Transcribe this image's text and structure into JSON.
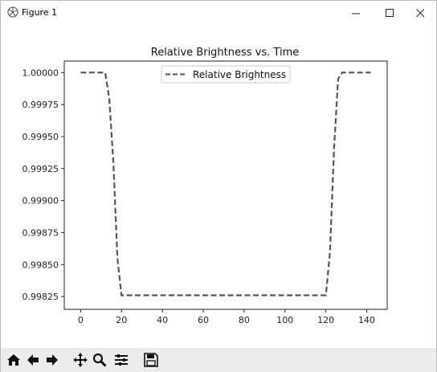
{
  "window": {
    "title": "Figure 1",
    "controls": [
      "minimize-icon",
      "maximize-icon",
      "close-icon"
    ]
  },
  "toolbar": {
    "buttons": [
      "home-icon",
      "back-icon",
      "forward-icon",
      "pan-icon",
      "zoom-icon",
      "configure-subplots-icon",
      "save-icon"
    ]
  },
  "chart_data": {
    "type": "line",
    "title": "Relative Brightness vs. Time",
    "xlabel": "",
    "ylabel": "",
    "xlim": [
      -8,
      150
    ],
    "ylim": [
      0.99815,
      1.00009
    ],
    "xticks": [
      "0",
      "20",
      "40",
      "60",
      "80",
      "100",
      "120",
      "140"
    ],
    "yticks": [
      "1.00000",
      "0.99975",
      "0.99950",
      "0.99925",
      "0.99900",
      "0.99875",
      "0.99850",
      "0.99825"
    ],
    "legend_position": "top-center",
    "grid": false,
    "series": [
      {
        "name": "Relative Brightness",
        "style": "dashed",
        "color": "#555555",
        "x": [
          0,
          12,
          14,
          16,
          18,
          20,
          60,
          100,
          120,
          122,
          124,
          126,
          128,
          142
        ],
        "y": [
          1.0,
          1.0,
          0.9998,
          0.9993,
          0.99855,
          0.99826,
          0.99826,
          0.99826,
          0.99826,
          0.9986,
          0.9994,
          0.99995,
          1.0,
          1.0
        ]
      }
    ]
  }
}
